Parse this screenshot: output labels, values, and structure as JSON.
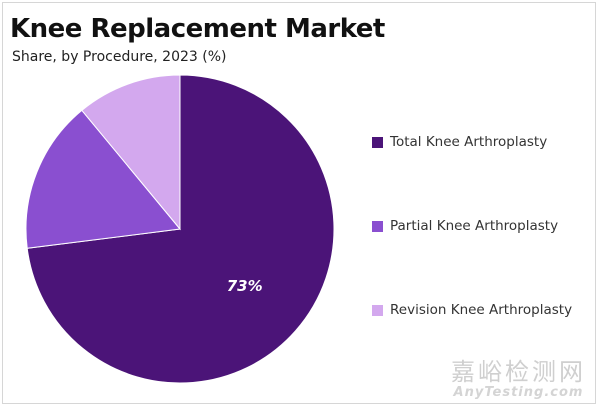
{
  "title": "Knee Replacement Market",
  "subtitle": "Share, by Procedure, 2023 (%)",
  "chart_data": {
    "type": "pie",
    "title": "Knee Replacement Market",
    "subtitle": "Share, by Procedure, 2023 (%)",
    "legend_position": "right",
    "slices": [
      {
        "label": "Total Knee Arthroplasty",
        "value": 73,
        "color": "#4b1478",
        "show_label": "73%"
      },
      {
        "label": "Partial Knee Arthroplasty",
        "value": 16,
        "color": "#8a4fd0",
        "show_label": ""
      },
      {
        "label": "Revision Knee Arthroplasty",
        "value": 11,
        "color": "#d3a8ee",
        "show_label": ""
      }
    ]
  },
  "watermark": {
    "chinese": "嘉峪检测网",
    "english": "AnyTesting.com"
  }
}
